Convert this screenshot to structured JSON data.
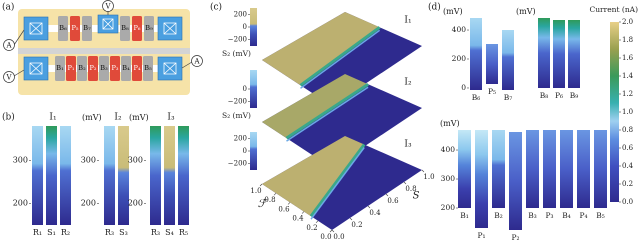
{
  "a": {
    "label": "(a)",
    "top_gates": [
      "B₆",
      "P₅",
      "B₇",
      "B₈",
      "P₆",
      "B₉"
    ],
    "bottom_gates": [
      "B₁",
      "P₁",
      "B₂",
      "P₂",
      "B₃",
      "P₃",
      "B₄",
      "P₄",
      "B₅"
    ],
    "meters": [
      "V",
      "A",
      "V",
      "A"
    ]
  },
  "b": {
    "label": "(b)",
    "ylim": [
      150,
      380
    ],
    "plots": [
      {
        "title": "I₁",
        "yticks": [
          300,
          200
        ],
        "bars": [
          "R₁",
          "S₁",
          "R₂"
        ]
      },
      {
        "unit": "(mV)",
        "title": "I₂",
        "yticks": [
          300,
          200
        ],
        "bars": [
          "R₃",
          "S₃"
        ]
      },
      {
        "unit": "(mV)",
        "title": "I₃",
        "yticks": [
          300,
          200
        ],
        "bars": [
          "R₃",
          "S₄",
          "R₅"
        ]
      }
    ]
  },
  "c": {
    "label": "(c)",
    "surfaces": [
      {
        "title": "I₁",
        "axis_label": "S₂ (mV)",
        "ylim": [
          -300,
          300
        ],
        "yticks": [
          200,
          0,
          {
            "value": -200,
            "label": "−200"
          }
        ]
      },
      {
        "title": "I₂",
        "axis_label": "S₂ (mV)",
        "ylim": [
          -300,
          300
        ],
        "yticks": [
          0,
          {
            "value": -200,
            "label": "−200"
          }
        ]
      },
      {
        "title": "I₃",
        "ylim": [
          -300,
          300
        ],
        "yticks": [
          200,
          0,
          {
            "value": -200,
            "label": "−200"
          }
        ]
      }
    ],
    "f_label": "ℱ",
    "s_label": "S",
    "fticks": [
      {
        "value": 0,
        "label": "0.0"
      },
      0.2,
      0.4,
      0.6,
      0.8,
      {
        "value": 1,
        "label": "1.0"
      }
    ],
    "sticks": [
      {
        "value": 0,
        "label": "0.0"
      },
      0.2,
      0.4,
      0.6,
      0.8,
      {
        "value": 1,
        "label": "1.0"
      }
    ]
  },
  "d": {
    "label": "(d)",
    "groups": [
      {
        "unit": "(mV)",
        "ylim": [
          -14,
          483
        ],
        "yticks": [
          400,
          200,
          0
        ],
        "bars": [
          "B₆",
          "P₅",
          "B₇"
        ]
      },
      {
        "unit": "(mV)",
        "bars": [
          "B₈",
          "P₆",
          "B₉"
        ]
      },
      {
        "unit": "(mV)",
        "ylim": [
          131,
          476
        ],
        "yticks": [
          400,
          300,
          200
        ],
        "bars": [
          "B₁",
          "P₁",
          "B₂",
          "P₂",
          "B₃",
          "P₃",
          "B₄",
          "P₄",
          "B₅"
        ]
      }
    ],
    "colorbar": {
      "title": "Current (nA)",
      "lim": [
        0,
        2
      ],
      "ticks": [
        {
          "value": 0,
          "label": "0.0"
        },
        0.2,
        0.4,
        0.6,
        0.8,
        {
          "value": 1,
          "label": "1.0"
        },
        1.2,
        1.4,
        1.6,
        1.8,
        {
          "value": 2,
          "label": "2.0"
        }
      ]
    }
  }
}
